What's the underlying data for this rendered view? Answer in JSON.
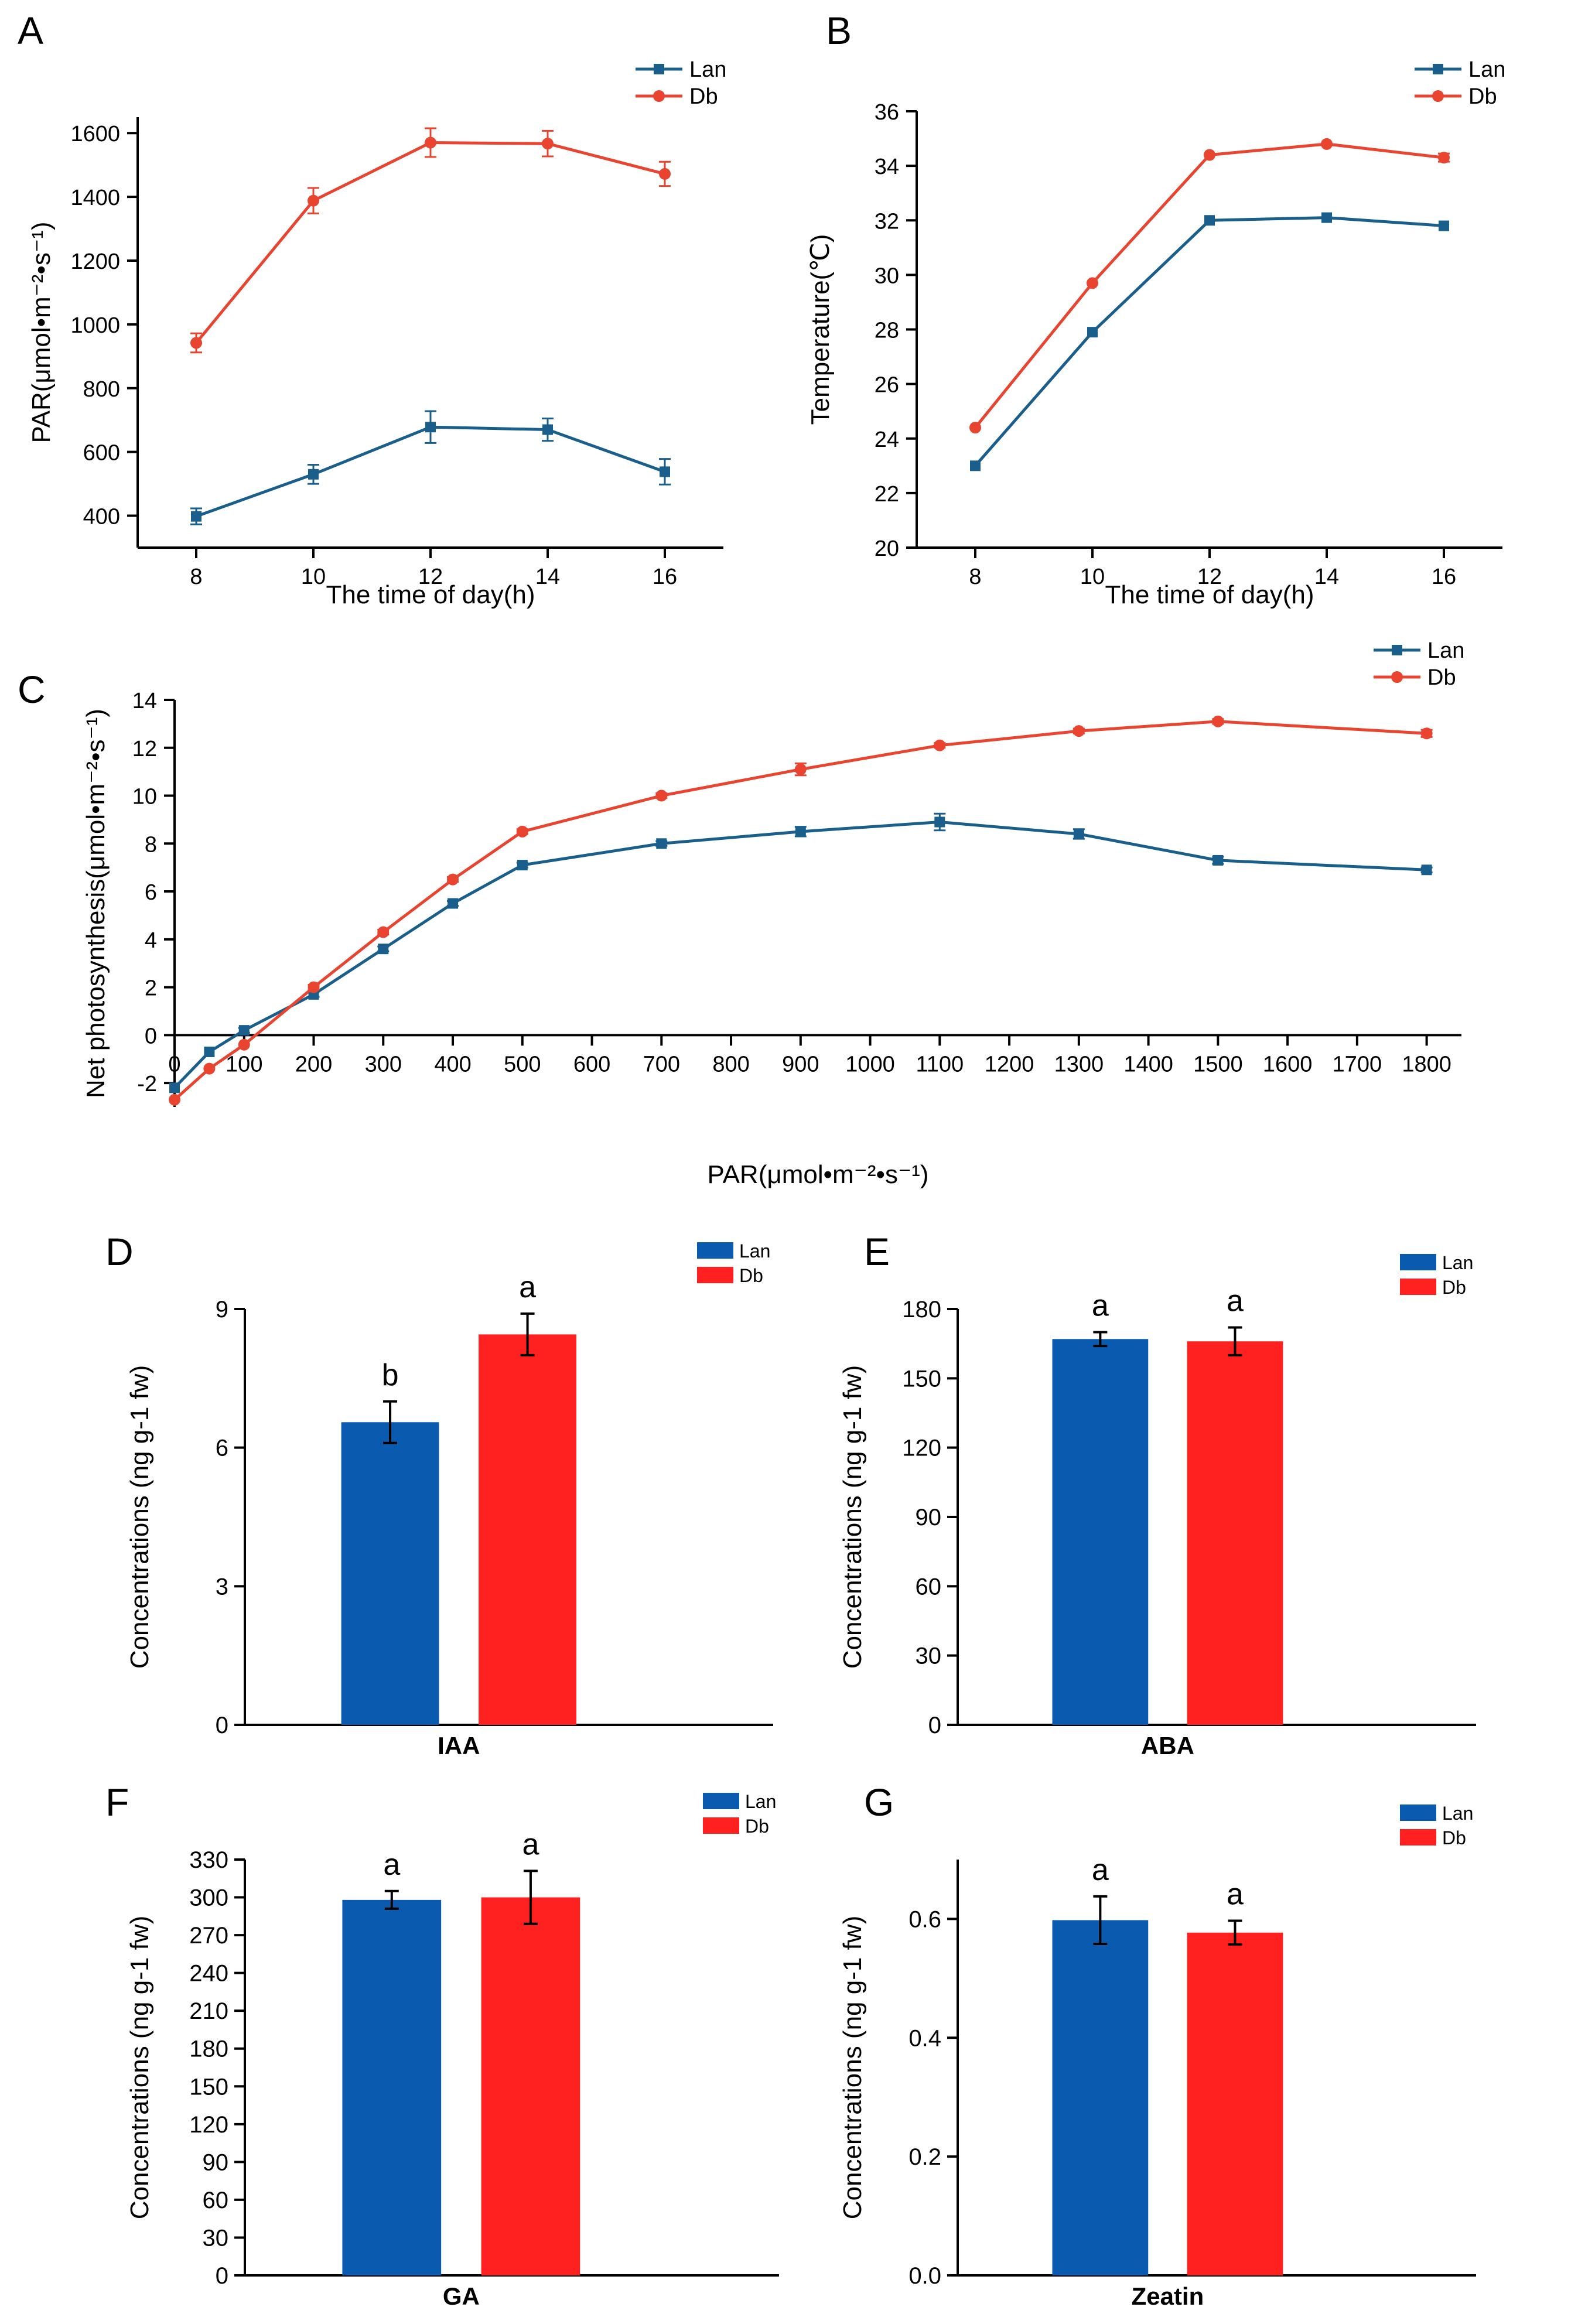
{
  "colors": {
    "lan_line": "#1a5f8c",
    "db_line": "#e8442f",
    "lan_bar": "#0a5bb0",
    "db_bar": "#ff2020",
    "axis": "#000000"
  },
  "chart_data": [
    {
      "panel": "A",
      "type": "line",
      "xlabel": "The time of day(h)",
      "ylabel": "PAR(μmol•m⁻²•s⁻¹)",
      "x": [
        8,
        10,
        12,
        14,
        16
      ],
      "xticks": [
        8,
        10,
        12,
        14,
        16
      ],
      "xlim": [
        7,
        17
      ],
      "yticks": [
        400,
        600,
        800,
        1000,
        1200,
        1400,
        1600
      ],
      "ylim": [
        300,
        1650
      ],
      "legend_position": "top-right",
      "series": [
        {
          "name": "Lan",
          "marker": "square",
          "color": "#1a5f8c",
          "values": [
            398,
            530,
            678,
            670,
            538
          ],
          "errors": [
            25,
            30,
            50,
            35,
            40
          ]
        },
        {
          "name": "Db",
          "marker": "circle",
          "color": "#e8442f",
          "values": [
            942,
            1388,
            1570,
            1567,
            1472
          ],
          "errors": [
            30,
            40,
            45,
            40,
            38
          ]
        }
      ]
    },
    {
      "panel": "B",
      "type": "line",
      "xlabel": "The time of day(h)",
      "ylabel": "Temperature(℃)",
      "x": [
        8,
        10,
        12,
        14,
        16
      ],
      "xticks": [
        8,
        10,
        12,
        14,
        16
      ],
      "xlim": [
        7,
        17
      ],
      "yticks": [
        20,
        22,
        24,
        26,
        28,
        30,
        32,
        34,
        36
      ],
      "ylim": [
        20,
        36
      ],
      "legend_position": "top-right",
      "series": [
        {
          "name": "Lan",
          "marker": "square",
          "color": "#1a5f8c",
          "values": [
            23.0,
            27.9,
            32.0,
            32.1,
            31.8
          ],
          "errors": [
            0,
            0,
            0,
            0,
            0
          ]
        },
        {
          "name": "Db",
          "marker": "circle",
          "color": "#e8442f",
          "values": [
            24.4,
            29.7,
            34.4,
            34.8,
            34.3
          ],
          "errors": [
            0,
            0,
            0,
            0,
            0.15
          ]
        }
      ]
    },
    {
      "panel": "C",
      "type": "line",
      "xlabel": "PAR(μmol•m⁻²•s⁻¹)",
      "ylabel": "Net photosynthesis(μmol•m⁻²•s⁻¹)",
      "x": [
        0,
        50,
        100,
        200,
        300,
        400,
        500,
        700,
        900,
        1100,
        1300,
        1500,
        1800
      ],
      "xticks": [
        0,
        100,
        200,
        300,
        400,
        500,
        600,
        700,
        800,
        900,
        1000,
        1100,
        1200,
        1300,
        1400,
        1500,
        1600,
        1700,
        1800
      ],
      "xlim": [
        0,
        1850
      ],
      "yticks": [
        -2,
        0,
        2,
        4,
        6,
        8,
        10,
        12,
        14
      ],
      "ylim": [
        -3,
        14
      ],
      "legend_position": "top-right",
      "series": [
        {
          "name": "Lan",
          "marker": "square",
          "color": "#1a5f8c",
          "values": [
            -2.2,
            -0.7,
            0.2,
            1.7,
            3.6,
            5.5,
            7.1,
            8.0,
            8.5,
            8.9,
            8.4,
            7.3,
            6.9
          ],
          "errors": [
            0,
            0,
            0.1,
            0.1,
            0.1,
            0.1,
            0.1,
            0.1,
            0.2,
            0.35,
            0.2,
            0.15,
            0.1
          ]
        },
        {
          "name": "Db",
          "marker": "circle",
          "color": "#e8442f",
          "values": [
            -2.7,
            -1.4,
            -0.4,
            2.0,
            4.3,
            6.5,
            8.5,
            10.0,
            11.1,
            12.1,
            12.7,
            13.1,
            12.6
          ],
          "errors": [
            0,
            0,
            0,
            0.1,
            0.1,
            0.1,
            0.1,
            0.1,
            0.25,
            0.1,
            0.1,
            0.1,
            0.15
          ]
        }
      ]
    },
    {
      "panel": "D",
      "type": "bar",
      "categories": [
        "IAA"
      ],
      "ylabel": "Concentrations (ng g-1 fw)",
      "yticks": [
        0,
        3,
        6,
        9
      ],
      "ylim": [
        0,
        9
      ],
      "legend_position": "top-right",
      "series": [
        {
          "name": "Lan",
          "color": "#0a5bb0",
          "values": [
            6.55
          ],
          "errors": [
            0.45
          ],
          "letters": [
            "b"
          ]
        },
        {
          "name": "Db",
          "color": "#ff2020",
          "values": [
            8.45
          ],
          "errors": [
            0.45
          ],
          "letters": [
            "a"
          ]
        }
      ]
    },
    {
      "panel": "E",
      "type": "bar",
      "categories": [
        "ABA"
      ],
      "ylabel": "Concentrations (ng g-1 fw)",
      "yticks": [
        0,
        30,
        60,
        90,
        120,
        150,
        180
      ],
      "ylim": [
        0,
        180
      ],
      "legend_position": "top-right",
      "series": [
        {
          "name": "Lan",
          "color": "#0a5bb0",
          "values": [
            167
          ],
          "errors": [
            3
          ],
          "letters": [
            "a"
          ]
        },
        {
          "name": "Db",
          "color": "#ff2020",
          "values": [
            166
          ],
          "errors": [
            6
          ],
          "letters": [
            "a"
          ]
        }
      ]
    },
    {
      "panel": "F",
      "type": "bar",
      "categories": [
        "GA"
      ],
      "ylabel": "Concentrations (ng g-1 fw)",
      "yticks": [
        0,
        30,
        60,
        90,
        120,
        150,
        180,
        210,
        240,
        270,
        300,
        330
      ],
      "ylim": [
        0,
        330
      ],
      "legend_position": "top-right",
      "series": [
        {
          "name": "Lan",
          "color": "#0a5bb0",
          "values": [
            298
          ],
          "errors": [
            7
          ],
          "letters": [
            "a"
          ]
        },
        {
          "name": "Db",
          "color": "#ff2020",
          "values": [
            300
          ],
          "errors": [
            21
          ],
          "letters": [
            "a"
          ]
        }
      ]
    },
    {
      "panel": "G",
      "type": "bar",
      "categories": [
        "Zeatin"
      ],
      "ylabel": "Concentrations (ng g-1 fw)",
      "yticks": [
        0.0,
        0.2,
        0.4,
        0.6
      ],
      "ylim": [
        0,
        0.7
      ],
      "legend_position": "top-right",
      "series": [
        {
          "name": "Lan",
          "color": "#0a5bb0",
          "values": [
            0.598
          ],
          "errors": [
            0.04
          ],
          "letters": [
            "a"
          ]
        },
        {
          "name": "Db",
          "color": "#ff2020",
          "values": [
            0.577
          ],
          "errors": [
            0.02
          ],
          "letters": [
            "a"
          ]
        }
      ]
    }
  ]
}
